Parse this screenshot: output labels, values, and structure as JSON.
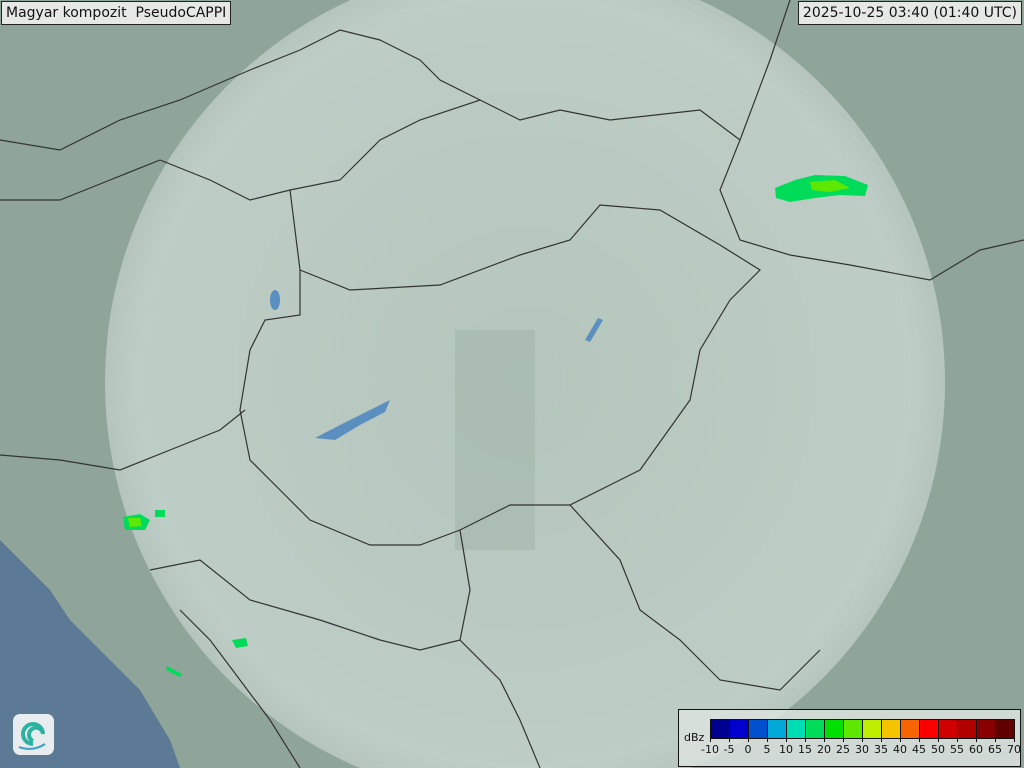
{
  "title": "Magyar kompozit  PseudoCAPPI",
  "timestamp": "2025-10-25 03:40 (01:40 UTC)",
  "legend": {
    "unit": "dBz",
    "ticks": [
      "-10",
      "-5",
      "0",
      "5",
      "10",
      "15",
      "20",
      "25",
      "30",
      "35",
      "40",
      "45",
      "50",
      "55",
      "60",
      "65",
      "70"
    ],
    "colors": [
      "#00008e",
      "#0000cc",
      "#0050d0",
      "#00a8d8",
      "#00dcb4",
      "#00dc5a",
      "#00e000",
      "#5ee800",
      "#c0ee00",
      "#f4c400",
      "#f86400",
      "#fa0000",
      "#d00000",
      "#b00000",
      "#880000",
      "#600000"
    ]
  },
  "map": {
    "land_color": "#8fa59a",
    "radar_coverage_color": "#c9d6cf",
    "sea_color": "#5c7a95",
    "border_color": "#333333",
    "lake_color": "#5b8fbf"
  },
  "logo": {
    "name": "swirl-logo-icon"
  }
}
